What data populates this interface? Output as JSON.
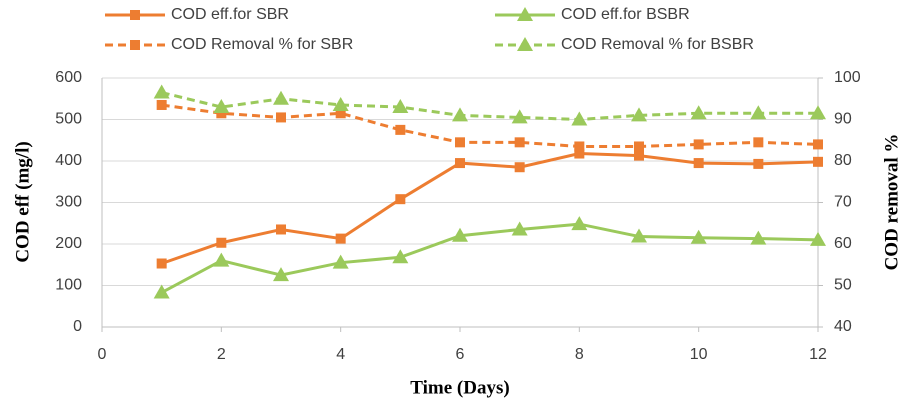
{
  "chart_data": {
    "type": "line",
    "x_label": "Time (Days)",
    "y_label": "COD eff (mg/l)",
    "y2_label": "COD removal %",
    "x": [
      1,
      2,
      3,
      4,
      5,
      6,
      7,
      8,
      9,
      10,
      11,
      12
    ],
    "xlim": [
      0,
      12
    ],
    "xticks": [
      0,
      2,
      4,
      6,
      8,
      10,
      12
    ],
    "ylim": [
      0,
      600
    ],
    "yticks": [
      0,
      100,
      200,
      300,
      400,
      500,
      600
    ],
    "y2lim": [
      40,
      100
    ],
    "y2ticks": [
      40,
      50,
      60,
      70,
      80,
      90,
      100
    ],
    "grid": true,
    "series": [
      {
        "name": "COD eff.for SBR",
        "color": "#ed7d31",
        "line_style": "solid",
        "marker": "square",
        "values": [
          153,
          203,
          235,
          213,
          308,
          395,
          385,
          418,
          413,
          395,
          393,
          398
        ]
      },
      {
        "name": "COD eff.for BSBR",
        "color": "#9bc95b",
        "line_style": "solid",
        "marker": "triangle",
        "values": [
          83,
          160,
          125,
          155,
          168,
          220,
          235,
          248,
          218,
          215,
          213,
          210
        ]
      },
      {
        "name": "COD Removal % for SBR",
        "color": "#ed7d31",
        "line_style": "dashed",
        "marker": "square",
        "axis": "y2",
        "values": [
          93.5,
          91.5,
          90.5,
          91.5,
          87.5,
          84.5,
          84.5,
          83.5,
          83.5,
          84,
          84.5,
          84
        ]
      },
      {
        "name": "COD Removal % for BSBR",
        "color": "#9bc95b",
        "line_style": "dashed",
        "marker": "triangle",
        "axis": "y2",
        "values": [
          96.5,
          93,
          95,
          93.5,
          93,
          91,
          90.5,
          90,
          91,
          91.5,
          91.5,
          91.5
        ]
      }
    ]
  }
}
